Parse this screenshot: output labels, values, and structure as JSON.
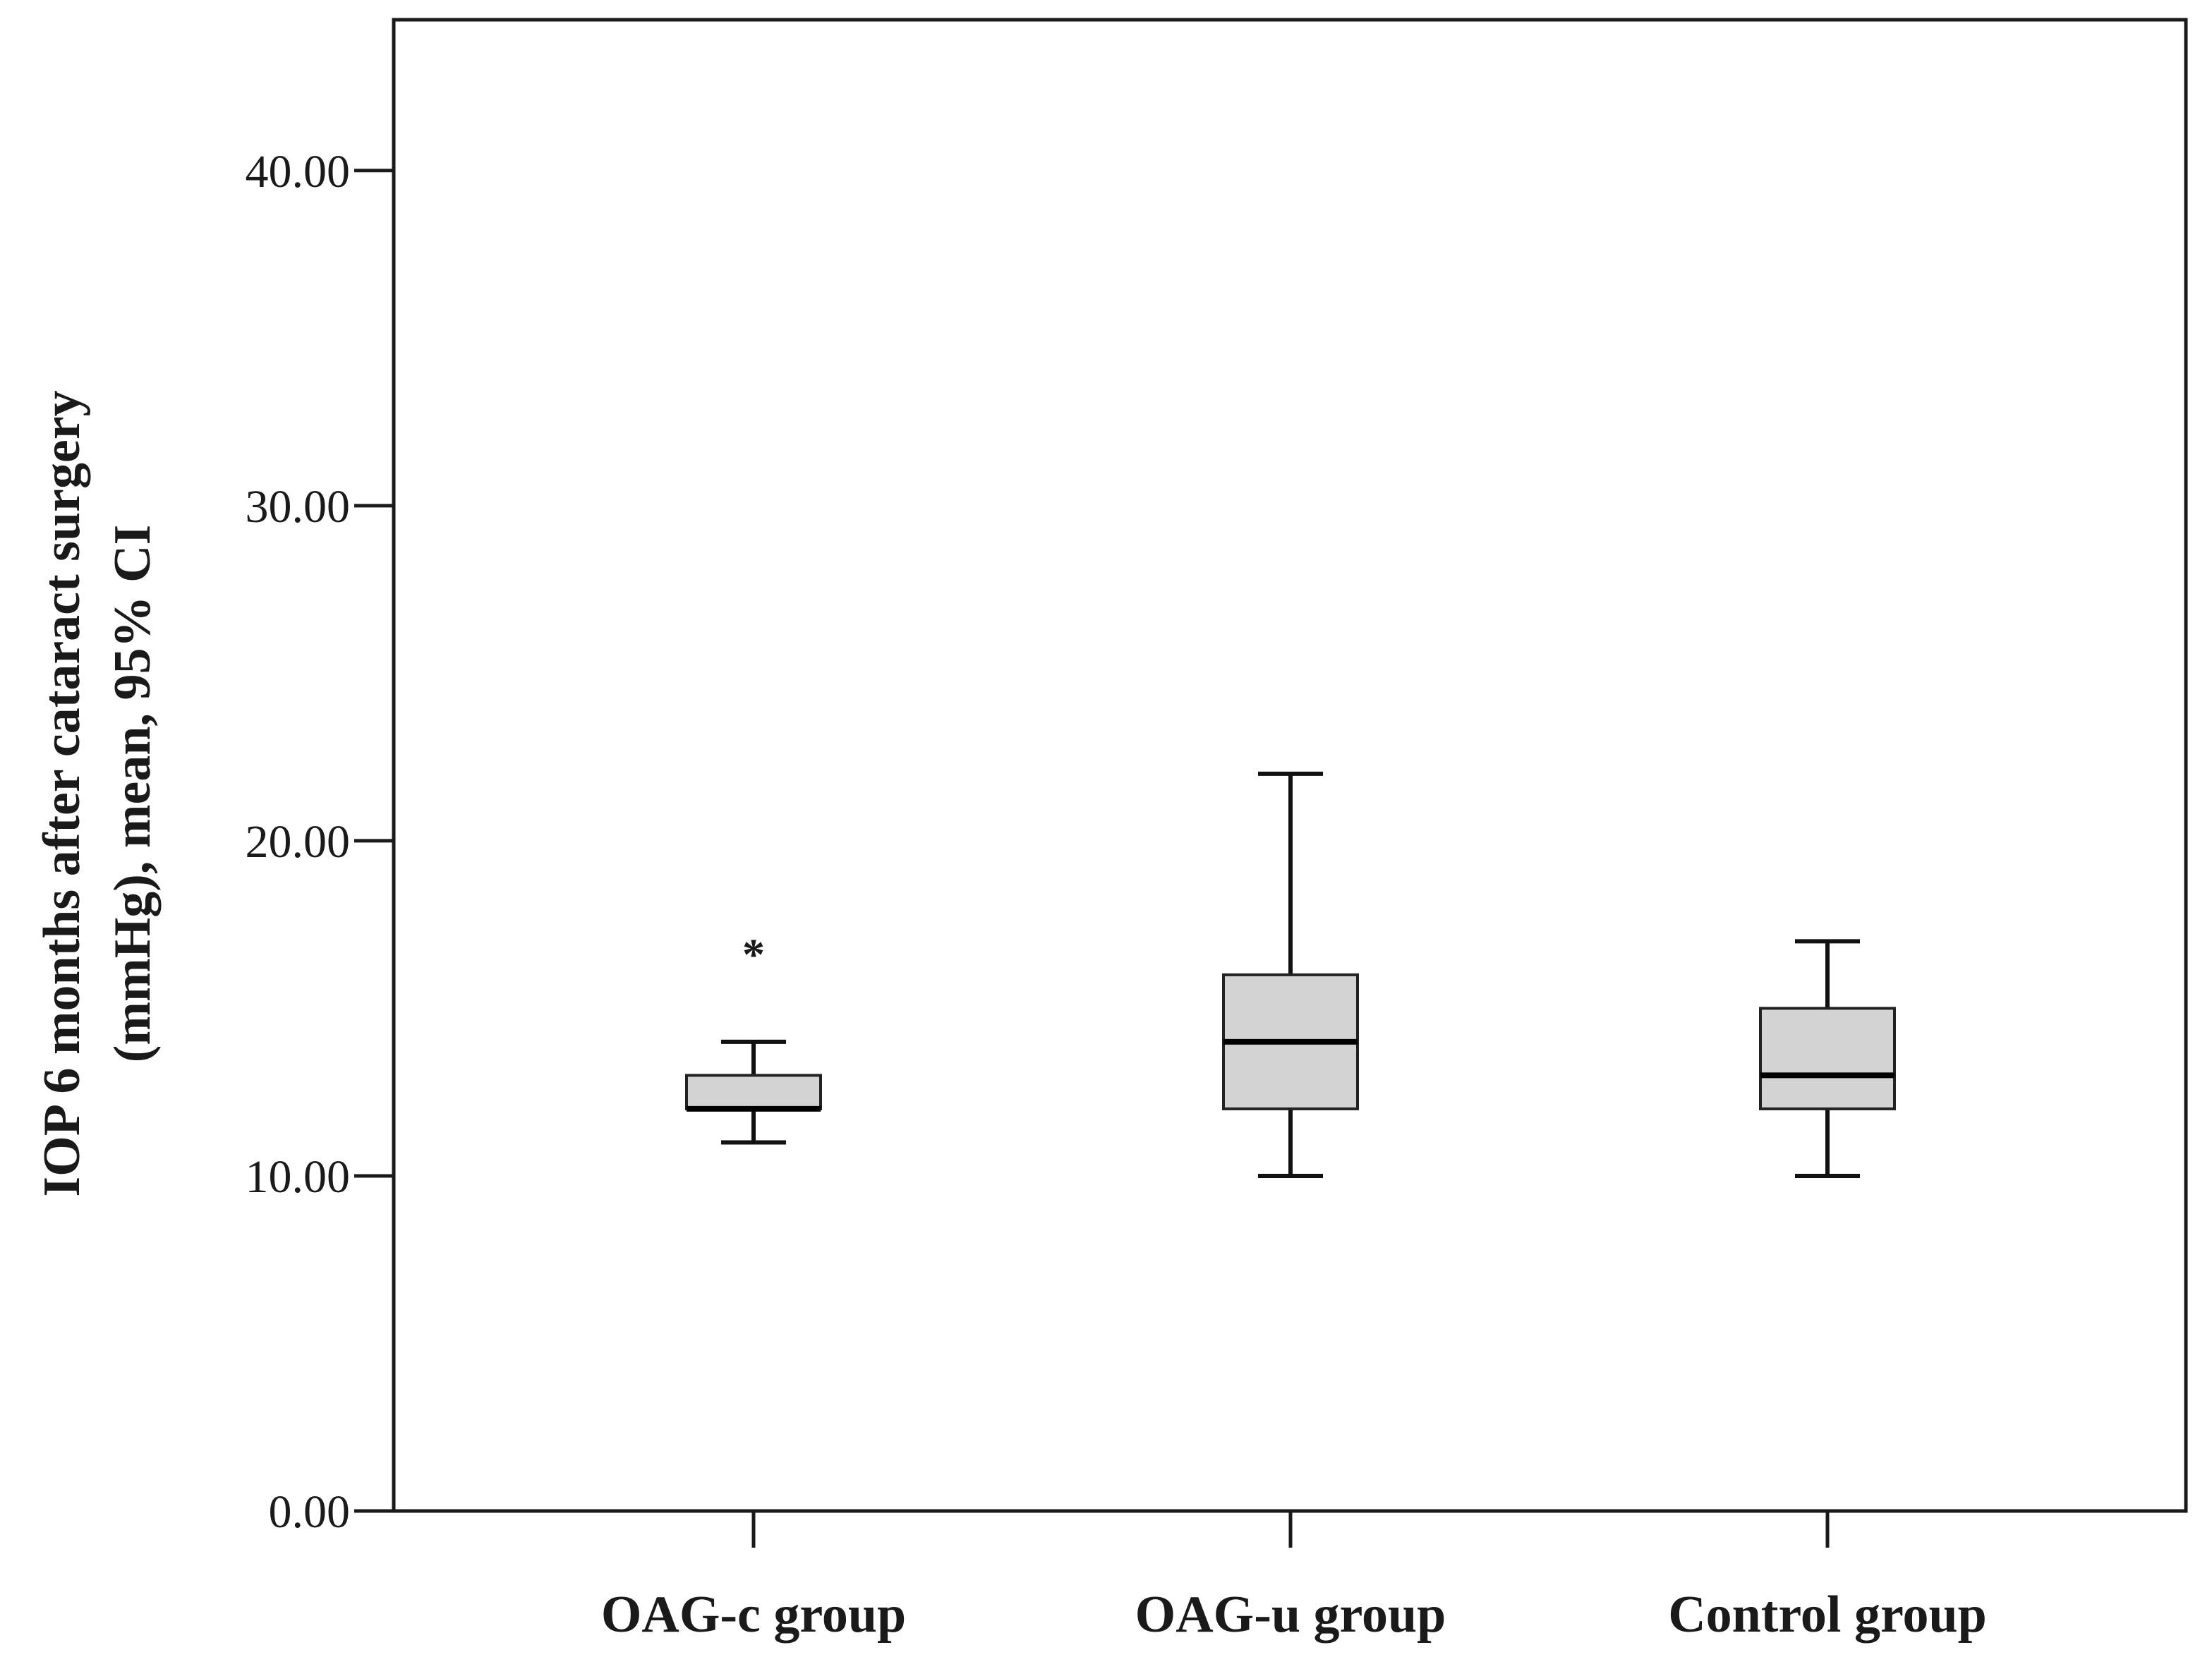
{
  "chart_data": {
    "type": "boxplot",
    "title": "",
    "xlabel": "",
    "ylabel_lines": [
      "IOP 6 months after cataract surgery",
      "(mmHg), mean, 95% CI"
    ],
    "ylim": [
      0,
      44.5
    ],
    "yticks": [
      0,
      10,
      20,
      30,
      40
    ],
    "ytick_labels": [
      "0.00",
      "10.00",
      "20.00",
      "30.00",
      "40.00"
    ],
    "categories": [
      "OAG-c group",
      "OAG-u group",
      "Control group"
    ],
    "box_fill": "#d3d3d3",
    "boxes": [
      {
        "name": "OAG-c group",
        "whisker_low": 11,
        "q1": 12,
        "median": 12,
        "q3": 13,
        "whisker_high": 14,
        "outliers": [
          17
        ],
        "outlier_marker": "*"
      },
      {
        "name": "OAG-u group",
        "whisker_low": 10,
        "q1": 12,
        "median": 14,
        "q3": 16,
        "whisker_high": 22,
        "outliers": [],
        "outlier_marker": "*"
      },
      {
        "name": "Control group",
        "whisker_low": 10,
        "q1": 12,
        "median": 13,
        "q3": 15,
        "whisker_high": 17,
        "outliers": [],
        "outlier_marker": "*"
      }
    ],
    "grid": false,
    "legend": "none"
  }
}
